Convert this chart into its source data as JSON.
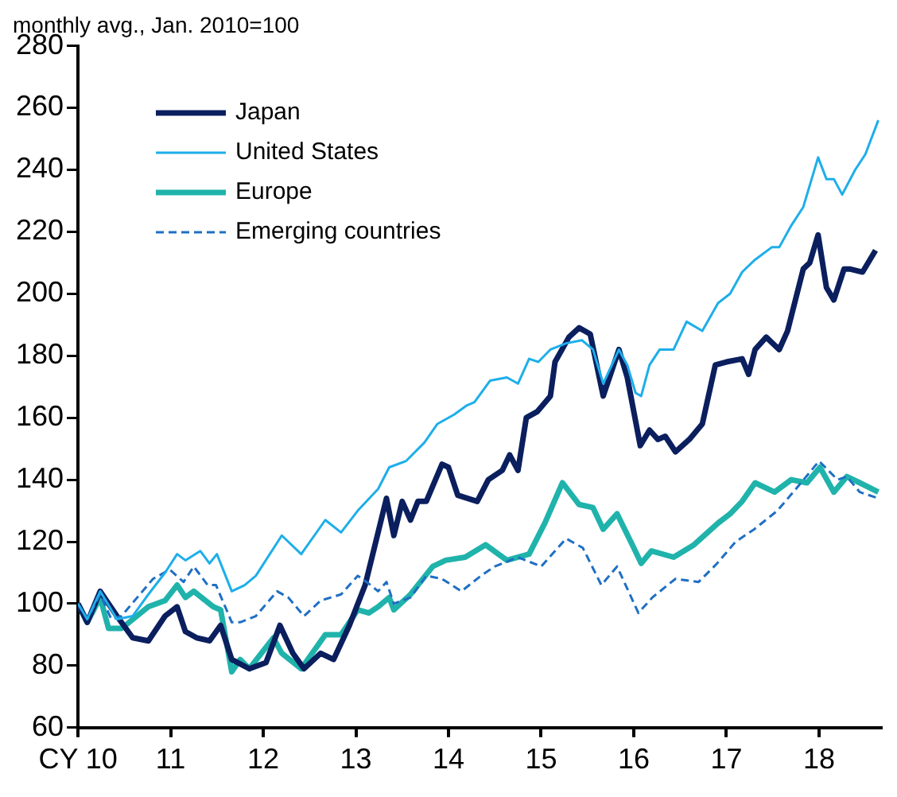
{
  "chart_data": {
    "type": "line",
    "ylabel": "monthly avg., Jan. 2010=100",
    "xlim": [
      2010,
      2018.67
    ],
    "xticks": [
      {
        "value": 2010,
        "label": "CY 10"
      },
      {
        "value": 2011,
        "label": "11"
      },
      {
        "value": 2012,
        "label": "12"
      },
      {
        "value": 2013,
        "label": "13"
      },
      {
        "value": 2014,
        "label": "14"
      },
      {
        "value": 2015,
        "label": "15"
      },
      {
        "value": 2016,
        "label": "16"
      },
      {
        "value": 2017,
        "label": "17"
      },
      {
        "value": 2018,
        "label": "18"
      }
    ],
    "ylim": [
      60,
      280
    ],
    "yticks": [
      60,
      80,
      100,
      120,
      140,
      160,
      180,
      200,
      220,
      240,
      260,
      280
    ],
    "grid": false,
    "legend": "top left",
    "marker": "none",
    "series": [
      {
        "name": "Japan",
        "color": "#0b1f5e",
        "line_style": "solid",
        "x": [
          2010,
          2010.1,
          2010.24,
          2010.42,
          2010.59,
          2010.76,
          2010.94,
          2011.07,
          2011.16,
          2011.28,
          2011.42,
          2011.54,
          2011.66,
          2011.85,
          2012.03,
          2012.18,
          2012.32,
          2012.44,
          2012.62,
          2012.76,
          2012.93,
          2013.1,
          2013.24,
          2013.33,
          2013.41,
          2013.5,
          2013.59,
          2013.67,
          2013.76,
          2013.93,
          2014.0,
          2014.1,
          2014.31,
          2014.43,
          2014.58,
          2014.66,
          2014.75,
          2014.84,
          2014.96,
          2015.1,
          2015.15,
          2015.3,
          2015.41,
          2015.53,
          2015.67,
          2015.84,
          2015.93,
          2016.07,
          2016.17,
          2016.26,
          2016.34,
          2016.45,
          2016.6,
          2016.74,
          2016.88,
          2017.0,
          2017.17,
          2017.24,
          2017.31,
          2017.43,
          2017.57,
          2017.66,
          2017.83,
          2017.9,
          2017.99,
          2018.08,
          2018.16,
          2018.27,
          2018.33,
          2018.47,
          2018.61
        ],
        "values": [
          100,
          94,
          104,
          96,
          89,
          88,
          96,
          99,
          91,
          89,
          88,
          93,
          82,
          79,
          81,
          93,
          84,
          79,
          84,
          82,
          93,
          106,
          123,
          134,
          122,
          133,
          127,
          133,
          133,
          145,
          144,
          135,
          133,
          140,
          143,
          148,
          143,
          160,
          162,
          167,
          178,
          186,
          189,
          187,
          167,
          182,
          173,
          151,
          156,
          153,
          154,
          149,
          153,
          158,
          177,
          178,
          179,
          174,
          182,
          186,
          182,
          188,
          208,
          210,
          219,
          202,
          198,
          208,
          208,
          207,
          214
        ]
      },
      {
        "name": "United States",
        "color": "#1eaeea",
        "line_style": "solid",
        "x": [
          2010,
          2010.1,
          2010.24,
          2010.42,
          2010.59,
          2010.76,
          2010.94,
          2011.07,
          2011.16,
          2011.32,
          2011.42,
          2011.5,
          2011.66,
          2011.8,
          2011.92,
          2012.2,
          2012.41,
          2012.67,
          2012.84,
          2013.02,
          2013.24,
          2013.36,
          2013.54,
          2013.74,
          2013.88,
          2014.06,
          2014.2,
          2014.28,
          2014.45,
          2014.63,
          2014.75,
          2014.87,
          2014.97,
          2015.1,
          2015.27,
          2015.44,
          2015.56,
          2015.67,
          2015.84,
          2015.93,
          2016.02,
          2016.08,
          2016.17,
          2016.28,
          2016.43,
          2016.57,
          2016.74,
          2016.91,
          2017.04,
          2017.17,
          2017.31,
          2017.49,
          2017.57,
          2017.7,
          2017.83,
          2017.99,
          2018.08,
          2018.16,
          2018.25,
          2018.39,
          2018.5,
          2018.64
        ],
        "values": [
          100,
          95,
          104,
          95,
          96,
          103,
          110,
          116,
          114,
          117,
          113,
          116,
          104,
          106,
          109,
          122,
          116,
          127,
          123,
          130,
          137,
          144,
          146,
          152,
          158,
          161,
          164,
          165,
          172,
          173,
          171,
          179,
          178,
          182,
          184,
          185,
          182,
          171,
          182,
          177,
          168,
          167,
          177,
          182,
          182,
          191,
          188,
          197,
          200,
          207,
          211,
          215,
          215,
          222,
          228,
          244,
          237,
          237,
          232,
          240,
          245,
          256
        ]
      },
      {
        "name": "Europe",
        "color": "#1fb3ab",
        "line_style": "solid",
        "x": [
          2010,
          2010.1,
          2010.24,
          2010.33,
          2010.47,
          2010.76,
          2010.94,
          2011.07,
          2011.16,
          2011.25,
          2011.46,
          2011.54,
          2011.66,
          2011.75,
          2011.85,
          2012.11,
          2012.2,
          2012.41,
          2012.67,
          2012.84,
          2013.02,
          2013.14,
          2013.24,
          2013.36,
          2013.41,
          2013.59,
          2013.83,
          2013.97,
          2014.18,
          2014.4,
          2014.63,
          2014.87,
          2015.04,
          2015.23,
          2015.41,
          2015.56,
          2015.67,
          2015.82,
          2016.0,
          2016.08,
          2016.19,
          2016.43,
          2016.65,
          2016.91,
          2017.04,
          2017.17,
          2017.31,
          2017.52,
          2017.7,
          2017.87,
          2018.01,
          2018.16,
          2018.3,
          2018.44,
          2018.64
        ],
        "values": [
          100,
          94,
          102,
          92,
          92,
          99,
          101,
          106,
          102,
          104,
          99,
          98,
          78,
          82,
          79,
          89,
          84,
          79,
          90,
          90,
          98,
          97,
          99,
          102,
          98,
          103,
          112,
          114,
          115,
          119,
          114,
          116,
          126,
          139,
          132,
          131,
          124,
          129,
          118,
          113,
          117,
          115,
          119,
          126,
          129,
          133,
          139,
          136,
          140,
          139,
          144,
          136,
          141,
          139,
          136
        ]
      },
      {
        "name": "Emerging countries",
        "color": "#1f6fc4",
        "line_style": "dashed",
        "x": [
          2010,
          2010.1,
          2010.24,
          2010.36,
          2010.47,
          2010.64,
          2010.81,
          2010.99,
          2011.14,
          2011.25,
          2011.4,
          2011.49,
          2011.66,
          2011.75,
          2011.92,
          2012.15,
          2012.27,
          2012.44,
          2012.62,
          2012.84,
          2013.02,
          2013.16,
          2013.24,
          2013.33,
          2013.41,
          2013.59,
          2013.76,
          2013.93,
          2014.14,
          2014.35,
          2014.5,
          2014.75,
          2015.0,
          2015.27,
          2015.45,
          2015.65,
          2015.82,
          2016.05,
          2016.2,
          2016.45,
          2016.7,
          2016.9,
          2017.1,
          2017.3,
          2017.55,
          2017.75,
          2018.0,
          2018.1,
          2018.2,
          2018.3,
          2018.44,
          2018.64
        ],
        "values": [
          100,
          95,
          103,
          95,
          96,
          102,
          108,
          111,
          107,
          112,
          106,
          106,
          94,
          94,
          96,
          104,
          102,
          96,
          101,
          103,
          109,
          106,
          104,
          107,
          100,
          102,
          109,
          108,
          104,
          109,
          112,
          115,
          112,
          121,
          118,
          106,
          112,
          97,
          102,
          108,
          107,
          113,
          120,
          124,
          130,
          137,
          146,
          143,
          140,
          141,
          136,
          134
        ]
      }
    ]
  }
}
